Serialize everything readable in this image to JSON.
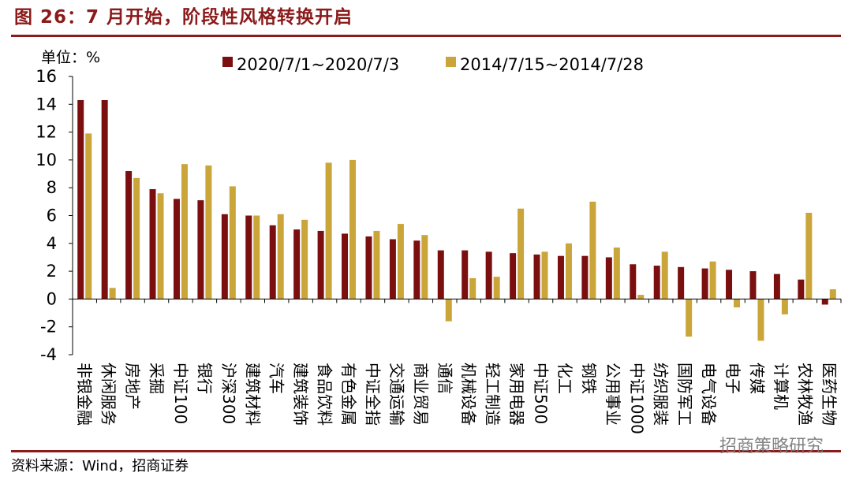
{
  "figure": {
    "title": "图 26：7 月开始，阶段性风格转换开启",
    "source": "资料来源：Wind，招商证券",
    "watermark": "招商策略研究"
  },
  "chart_data": {
    "type": "bar",
    "unit_label": "单位：%",
    "ylim": [
      -4,
      16
    ],
    "yticks": [
      -4,
      -2,
      0,
      2,
      4,
      6,
      8,
      10,
      12,
      14,
      16
    ],
    "grid": false,
    "legend_position": "top",
    "categories": [
      "非银金融",
      "休闲服务",
      "房地产",
      "采掘",
      "中证100",
      "银行",
      "沪深300",
      "建筑材料",
      "汽车",
      "建筑装饰",
      "食品饮料",
      "有色金属",
      "中证全指",
      "交通运输",
      "商业贸易",
      "通信",
      "机械设备",
      "轻工制造",
      "家用电器",
      "中证500",
      "化工",
      "钢铁",
      "公用事业",
      "中证1000",
      "纺织服装",
      "国防军工",
      "电气设备",
      "电子",
      "传媒",
      "计算机",
      "农林牧渔",
      "医药生物"
    ],
    "series": [
      {
        "name": "2020/7/1~2020/7/3",
        "color": "#7B0F0F",
        "values": [
          14.3,
          14.3,
          9.2,
          7.9,
          7.2,
          7.1,
          6.1,
          6.0,
          5.3,
          5.0,
          4.9,
          4.7,
          4.5,
          4.3,
          4.2,
          3.5,
          3.5,
          3.4,
          3.3,
          3.2,
          3.1,
          3.1,
          3.0,
          2.5,
          2.4,
          2.3,
          2.2,
          2.1,
          2.0,
          1.8,
          1.4,
          -0.4
        ]
      },
      {
        "name": "2014/7/15~2014/7/28",
        "color": "#C9A53A",
        "values": [
          11.9,
          0.8,
          8.7,
          7.6,
          9.7,
          9.6,
          8.1,
          6.0,
          6.1,
          5.7,
          9.8,
          10.0,
          4.9,
          5.4,
          4.6,
          -1.6,
          1.5,
          1.6,
          6.5,
          3.4,
          4.0,
          7.0,
          3.7,
          0.3,
          3.4,
          -2.7,
          2.7,
          -0.6,
          -3.0,
          -1.1,
          6.2,
          0.7
        ]
      }
    ]
  }
}
